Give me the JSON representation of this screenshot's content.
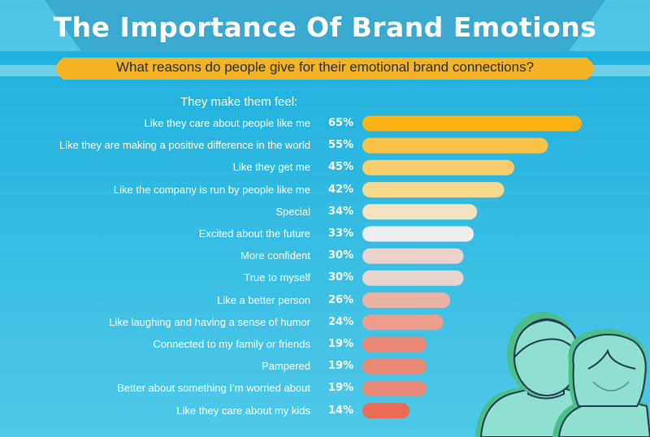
{
  "header": {
    "title": "The Importance Of Brand Emotions",
    "subtitle": "What reasons do people give for their emotional brand connections?"
  },
  "section_label": "They make them feel:",
  "colors": {
    "background_top": "#1ab0dc",
    "background_bottom": "#4cc8e8",
    "title_band": "#3aa9d0",
    "subtitle_band": "#f4b324",
    "person_fill": "#8fe0d0",
    "person_shadow": "#4dbd8a",
    "person_outline": "#1f3a4a"
  },
  "illustration": {
    "figures": [
      "man-silhouette",
      "woman-silhouette"
    ]
  },
  "chart_data": {
    "type": "bar",
    "orientation": "horizontal",
    "title": "",
    "xlabel": "",
    "ylabel": "",
    "unit": "%",
    "xlim": [
      0,
      65
    ],
    "grid": false,
    "categories": [
      "Like they care about people like me",
      "Like they are making a positive difference in the world",
      "Like they get me",
      "Like the company is run by people like me",
      "Special",
      "Excited about the future",
      "More confident",
      "True to myself",
      "Like a better person",
      "Like laughing and having a sense of humor",
      "Connected to my family or friends",
      "Pampered",
      "Better about something I’m worried about",
      "Like they care about my kids"
    ],
    "values": [
      65,
      55,
      45,
      42,
      34,
      33,
      30,
      30,
      26,
      24,
      19,
      19,
      19,
      14
    ],
    "value_labels": [
      "65%",
      "55%",
      "45%",
      "42%",
      "34%",
      "33%",
      "30%",
      "30%",
      "26%",
      "24%",
      "19%",
      "19%",
      "19%",
      "14%"
    ],
    "bar_colors": [
      "#fbb214",
      "#f9c347",
      "#f8cd6a",
      "#f4d98e",
      "#f3e3bf",
      "#eeeef0",
      "#ead2cd",
      "#ead2cd",
      "#eab3a5",
      "#eb9e8b",
      "#ea8a76",
      "#ea8a76",
      "#ea8a76",
      "#e86b52"
    ]
  }
}
